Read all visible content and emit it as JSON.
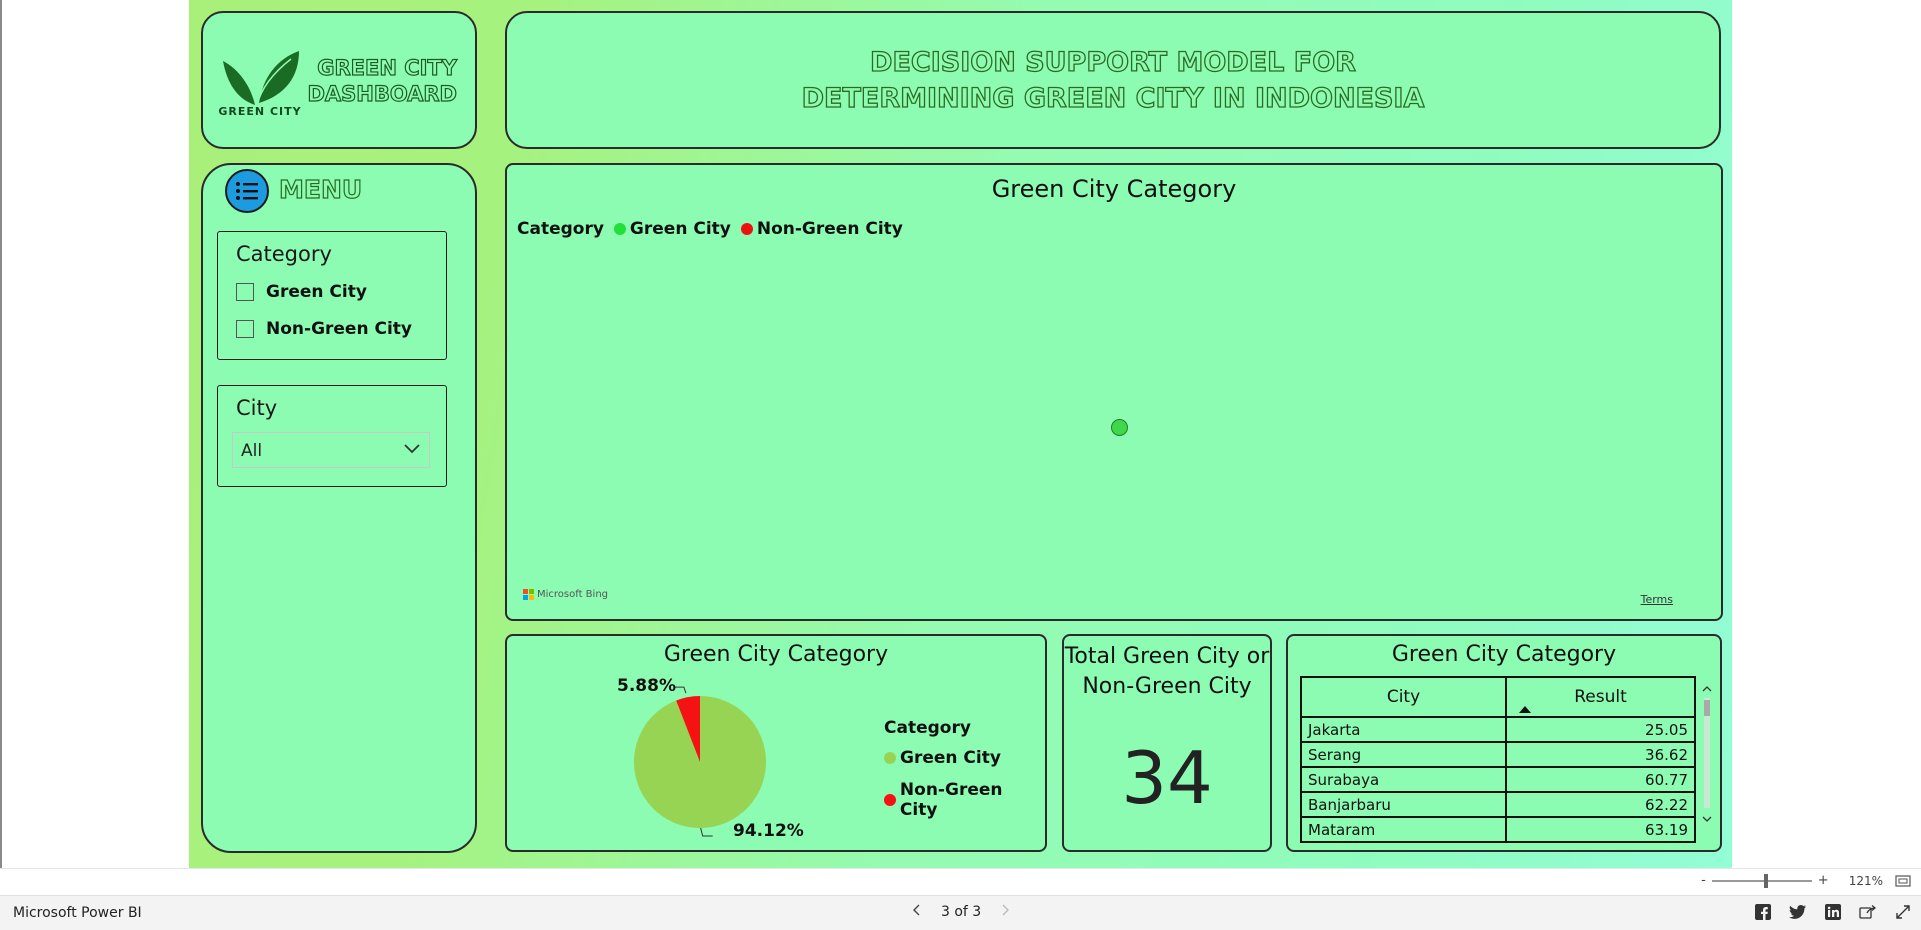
{
  "logo": {
    "brand_text": "GREEN CITY",
    "dashboard_title_line1": "GREEN CITY",
    "dashboard_title_line2": "DASHBOARD",
    "leaf_color": "#1a6b24"
  },
  "header": {
    "title_line1": "DECISION SUPPORT MODEL FOR",
    "title_line2": "DETERMINING GREEN CITY IN INDONESIA"
  },
  "menu": {
    "label": "MENU",
    "icon": "list-menu-icon",
    "category_slicer": {
      "title": "Category",
      "options": [
        {
          "label": "Green City",
          "checked": false
        },
        {
          "label": "Non-Green City",
          "checked": false
        }
      ]
    },
    "city_slicer": {
      "title": "City",
      "selected": "All"
    }
  },
  "map": {
    "title": "Green City Category",
    "legend_title": "Category",
    "legend_items": [
      {
        "label": "Green City",
        "color": "#22e03a"
      },
      {
        "label": "Non-Green City",
        "color": "#f01010"
      }
    ],
    "attribution": "Microsoft Bing",
    "terms": "Terms"
  },
  "chart_data": {
    "type": "pie",
    "title": "Green City Category",
    "legend_title": "Category",
    "categories": [
      "Green City",
      "Non-Green City"
    ],
    "values": [
      94.12,
      5.88
    ],
    "labels": [
      "94.12%",
      "5.88%"
    ],
    "colors": [
      "#98d454",
      "#f51212"
    ],
    "legend_placement": "right"
  },
  "total_card": {
    "title_line1": "Total Green City or",
    "title_line2": "Non-Green City",
    "value": "34"
  },
  "table": {
    "title": "Green City Category",
    "columns": [
      "City",
      "Result"
    ],
    "rows": [
      {
        "city": "Jakarta",
        "result": "25.05"
      },
      {
        "city": "Serang",
        "result": "36.62"
      },
      {
        "city": "Surabaya",
        "result": "60.77"
      },
      {
        "city": "Banjarbaru",
        "result": "62.22"
      },
      {
        "city": "Mataram",
        "result": "63.19"
      }
    ]
  },
  "status_bar": {
    "zoom_minus": "-",
    "zoom_plus": "+",
    "zoom_level": "121%"
  },
  "footer": {
    "brand": "Microsoft Power BI",
    "page_indicator": "3 of 3"
  }
}
